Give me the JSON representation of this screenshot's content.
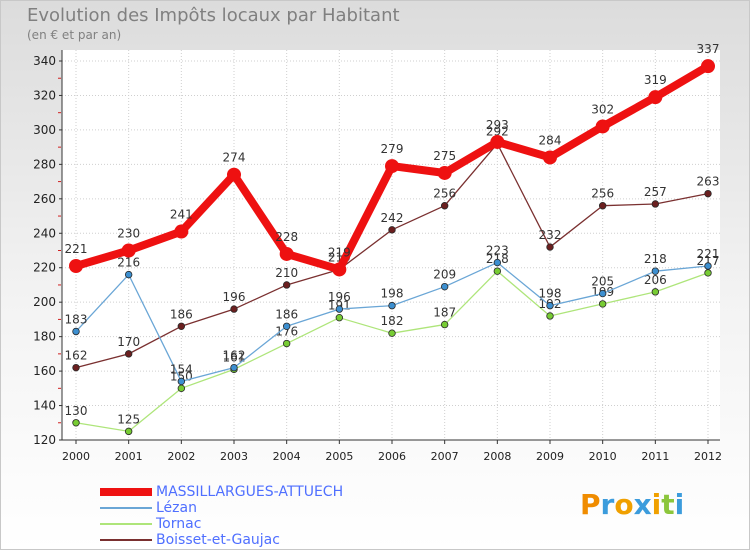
{
  "title": "Evolution des Impôts locaux par Habitant",
  "subtitle": "(en € et par an)",
  "logo": {
    "letters": [
      "P",
      "r",
      "o",
      "x",
      "i",
      "t",
      "i"
    ],
    "colors": [
      "#f08c00",
      "#3c9cdc",
      "#f0a000",
      "#3c9cdc",
      "#f0a000",
      "#8cc63c",
      "#3c9cdc"
    ]
  },
  "chart_data": {
    "type": "line",
    "title": "Evolution des Impôts locaux par Habitant",
    "ylabel": "(en € et par an)",
    "xlabel": "",
    "x": [
      "2000",
      "2001",
      "2002",
      "2003",
      "2004",
      "2005",
      "2006",
      "2007",
      "2008",
      "2009",
      "2010",
      "2011",
      "2012"
    ],
    "ylim": [
      120,
      340
    ],
    "yticks": [
      "120",
      "140",
      "160",
      "180",
      "200",
      "220",
      "240",
      "260",
      "280",
      "300",
      "320",
      "340"
    ],
    "grid": true,
    "legend_position": "bottom-left",
    "series": [
      {
        "name": "MASSILLARGUES-ATTUECH",
        "color": "#ee1111",
        "line": "#ee1111",
        "values": [
          221,
          230,
          241,
          274,
          228,
          219,
          279,
          275,
          293,
          284,
          302,
          319,
          337
        ]
      },
      {
        "name": "Lézan",
        "color": "#3c8fd0",
        "line": "#6aa6d6",
        "values": [
          183,
          216,
          154,
          162,
          186,
          196,
          198,
          209,
          223,
          198,
          205,
          218,
          221
        ]
      },
      {
        "name": "Tornac",
        "color": "#77cc33",
        "line": "#aee57a",
        "values": [
          130,
          125,
          150,
          161,
          176,
          191,
          182,
          187,
          218,
          192,
          199,
          206,
          217
        ]
      },
      {
        "name": "Boisset-et-Gaujac",
        "color": "#6b1f1f",
        "line": "#7a3030",
        "values": [
          162,
          170,
          186,
          196,
          210,
          219,
          242,
          256,
          292,
          232,
          256,
          257,
          263
        ]
      }
    ]
  }
}
